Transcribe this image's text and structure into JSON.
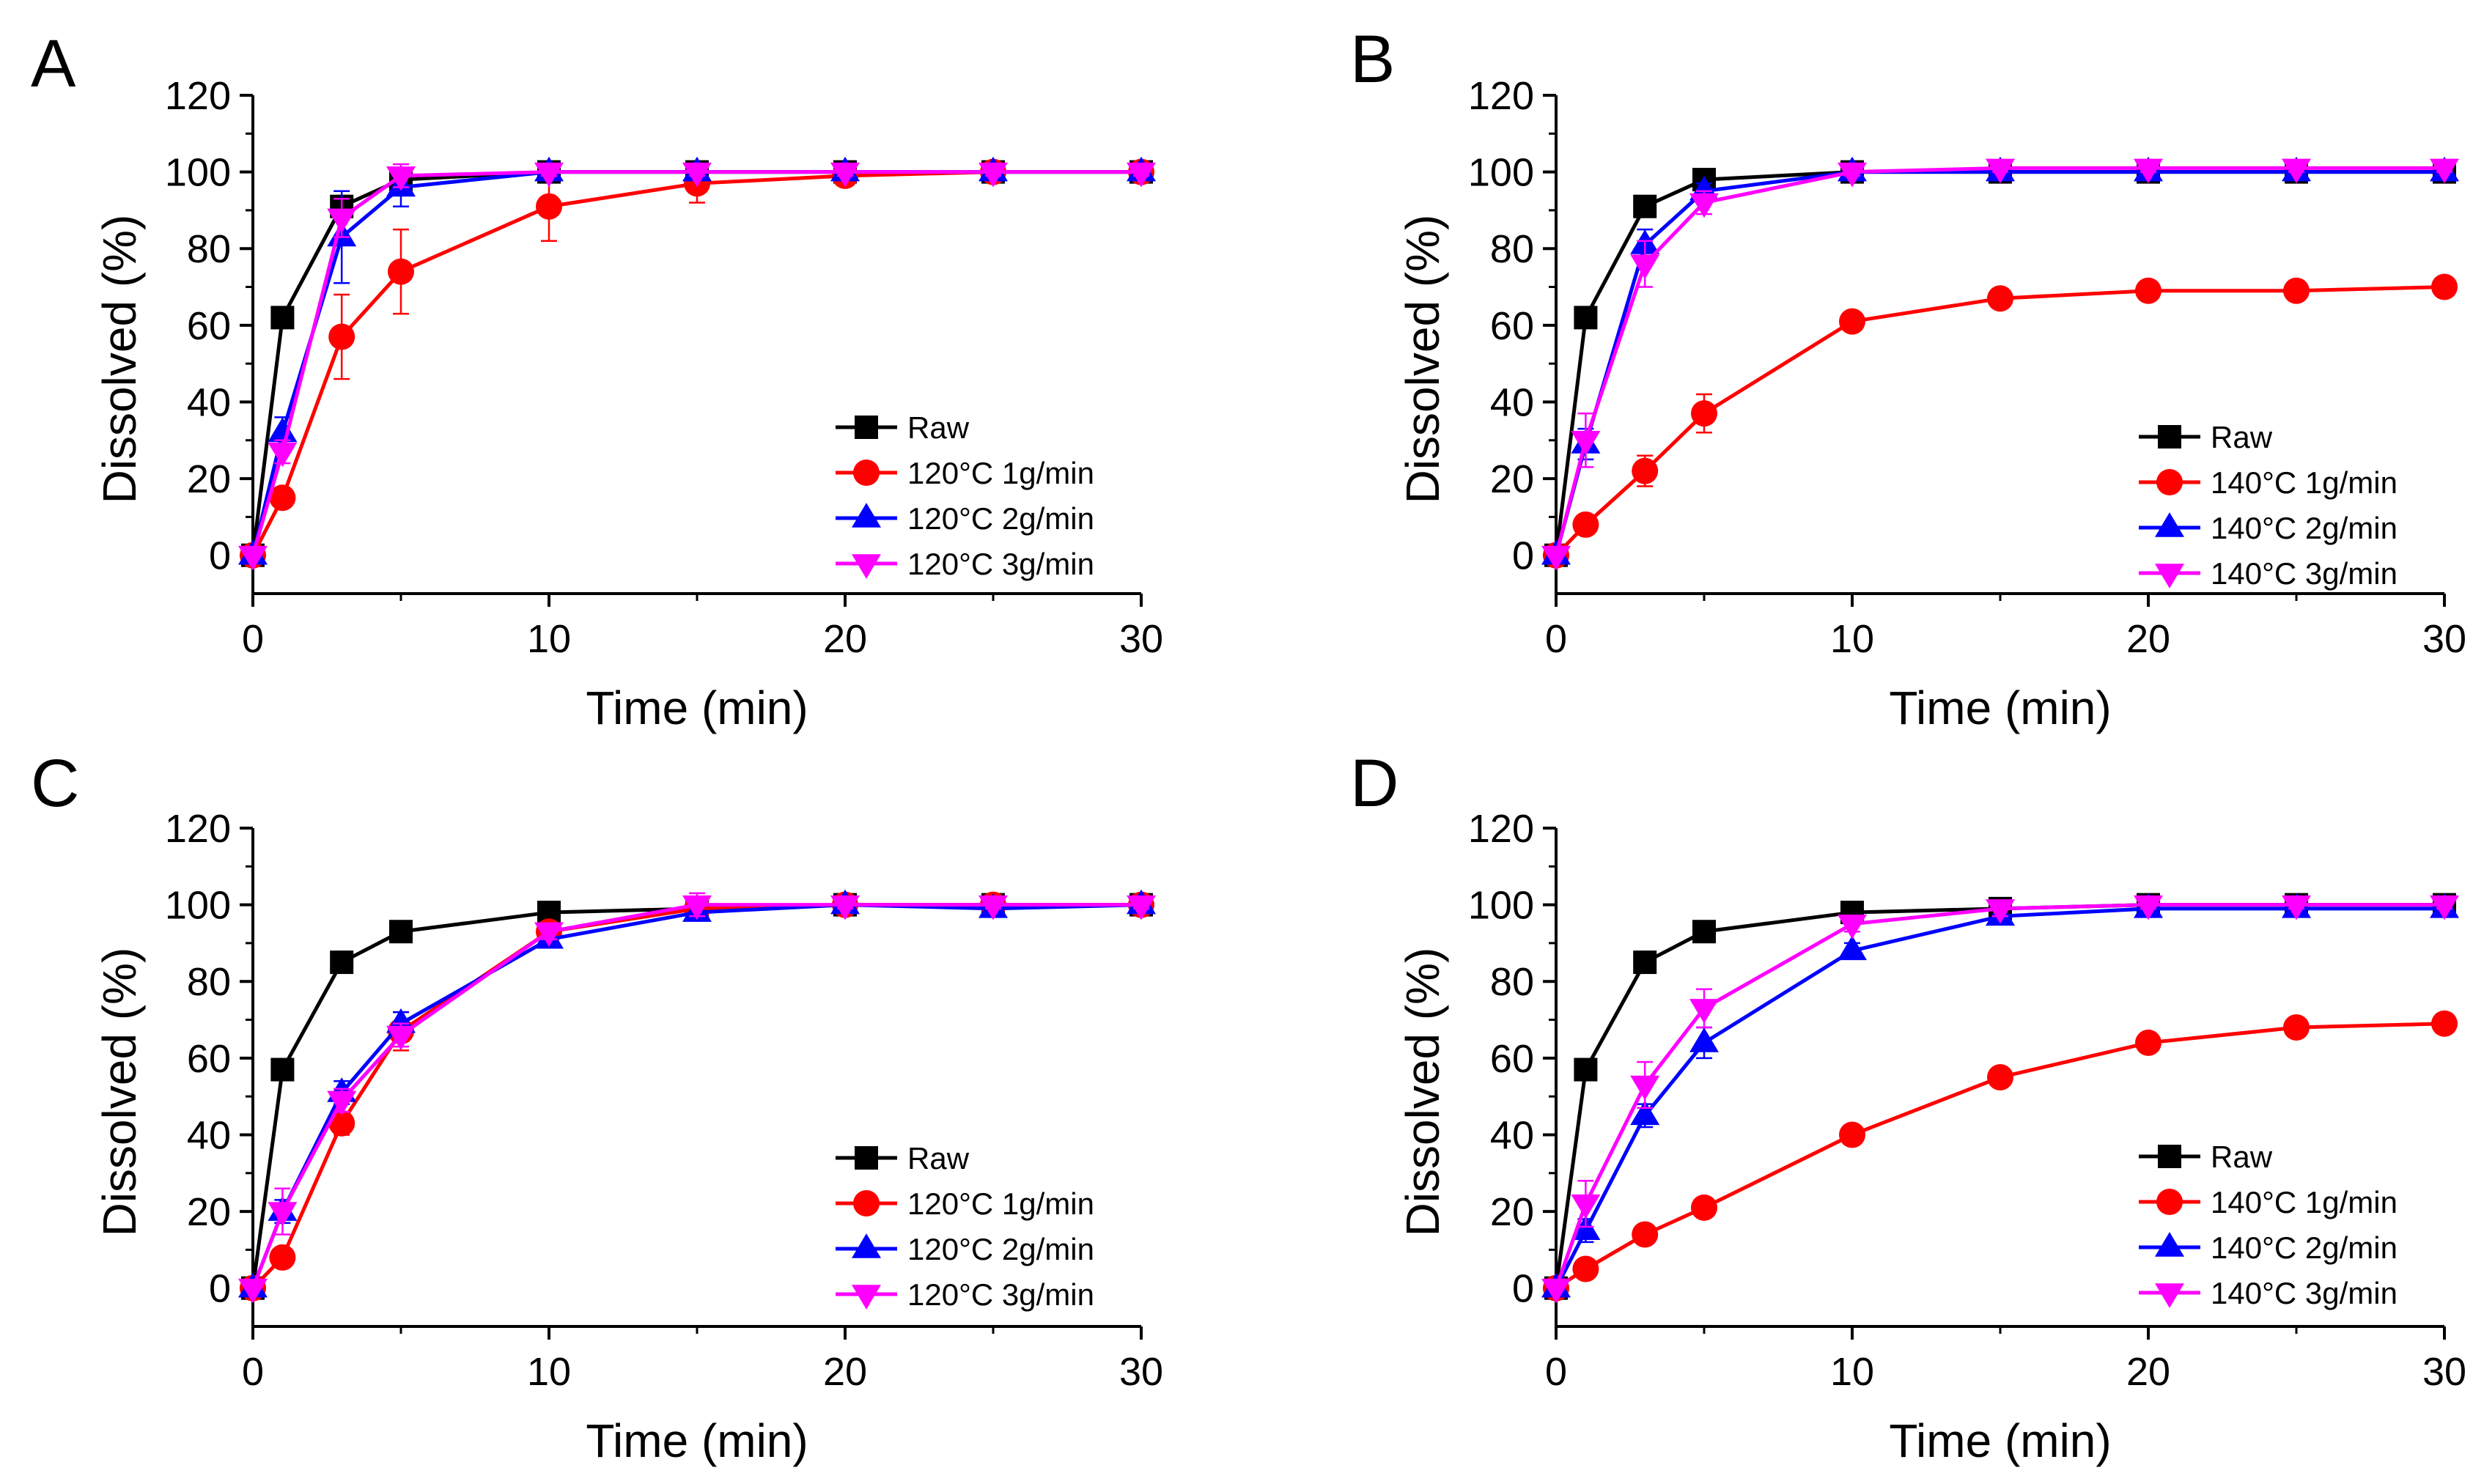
{
  "chart_data": [
    {
      "panel": "A",
      "type": "line",
      "xlabel": "Time (min)",
      "ylabel": "Dissolved (%)",
      "xlim": [
        0,
        30
      ],
      "ylim": [
        -10,
        120
      ],
      "xticks": [
        0,
        10,
        20,
        30
      ],
      "yticks": [
        0,
        20,
        40,
        60,
        80,
        100,
        120
      ],
      "legend_position": "bottom-right",
      "series": [
        {
          "name": "Raw",
          "color": "#000000",
          "marker": "square",
          "x": [
            0,
            1,
            3,
            5,
            10,
            15,
            20,
            25,
            30
          ],
          "y": [
            0,
            62,
            91,
            98,
            100,
            100,
            100,
            100,
            100
          ],
          "err": [
            0,
            0,
            0,
            0,
            0,
            0,
            0,
            0,
            0
          ]
        },
        {
          "name": "120°C 1g/min",
          "color": "#ff0000",
          "marker": "circle",
          "x": [
            0,
            1,
            3,
            5,
            10,
            15,
            20,
            25,
            30
          ],
          "y": [
            0,
            15,
            57,
            74,
            91,
            97,
            99,
            100,
            100
          ],
          "err": [
            0,
            2,
            11,
            11,
            9,
            5,
            1,
            0,
            0
          ]
        },
        {
          "name": "120°C 2g/min",
          "color": "#0000ff",
          "marker": "triangle-up",
          "x": [
            0,
            1,
            3,
            5,
            10,
            15,
            20,
            25,
            30
          ],
          "y": [
            0,
            32,
            83,
            96,
            100,
            100,
            100,
            100,
            100
          ],
          "err": [
            0,
            4,
            12,
            5,
            1,
            1,
            1,
            1,
            1
          ]
        },
        {
          "name": "120°C 3g/min",
          "color": "#ff00ff",
          "marker": "triangle-down",
          "x": [
            0,
            1,
            3,
            5,
            10,
            15,
            20,
            25,
            30
          ],
          "y": [
            0,
            27,
            88,
            99,
            100,
            100,
            100,
            100,
            100
          ],
          "err": [
            0,
            3,
            5,
            3,
            1,
            1,
            1,
            1,
            1
          ]
        }
      ]
    },
    {
      "panel": "B",
      "type": "line",
      "xlabel": "Time (min)",
      "ylabel": "Dissolved (%)",
      "xlim": [
        0,
        30
      ],
      "ylim": [
        -10,
        120
      ],
      "xticks": [
        0,
        10,
        20,
        30
      ],
      "yticks": [
        0,
        20,
        40,
        60,
        80,
        100,
        120
      ],
      "legend_position": "bottom-right",
      "series": [
        {
          "name": "Raw",
          "color": "#000000",
          "marker": "square",
          "x": [
            0,
            1,
            3,
            5,
            10,
            15,
            20,
            25,
            30
          ],
          "y": [
            0,
            62,
            91,
            98,
            100,
            100,
            100,
            100,
            100
          ],
          "err": [
            0,
            0,
            0,
            0,
            0,
            0,
            0,
            0,
            0
          ]
        },
        {
          "name": "140°C 1g/min",
          "color": "#ff0000",
          "marker": "circle",
          "x": [
            0,
            1,
            3,
            5,
            10,
            15,
            20,
            25,
            30
          ],
          "y": [
            0,
            8,
            22,
            37,
            61,
            67,
            69,
            69,
            70
          ],
          "err": [
            0,
            1,
            4,
            5,
            1,
            1,
            1,
            1,
            1
          ]
        },
        {
          "name": "140°C 2g/min",
          "color": "#0000ff",
          "marker": "triangle-up",
          "x": [
            0,
            1,
            3,
            5,
            10,
            15,
            20,
            25,
            30
          ],
          "y": [
            0,
            29,
            81,
            95,
            100,
            100,
            100,
            100,
            100
          ],
          "err": [
            0,
            4,
            4,
            2,
            1,
            1,
            1,
            1,
            1
          ]
        },
        {
          "name": "140°C 3g/min",
          "color": "#ff00ff",
          "marker": "triangle-down",
          "x": [
            0,
            1,
            3,
            5,
            10,
            15,
            20,
            25,
            30
          ],
          "y": [
            0,
            30,
            76,
            92,
            100,
            101,
            101,
            101,
            101
          ],
          "err": [
            0,
            7,
            6,
            3,
            1,
            1,
            1,
            1,
            1
          ]
        }
      ]
    },
    {
      "panel": "C",
      "type": "line",
      "xlabel": "Time (min)",
      "ylabel": "Dissolved (%)",
      "xlim": [
        0,
        30
      ],
      "ylim": [
        -10,
        120
      ],
      "xticks": [
        0,
        10,
        20,
        30
      ],
      "yticks": [
        0,
        20,
        40,
        60,
        80,
        100,
        120
      ],
      "legend_position": "bottom-right",
      "series": [
        {
          "name": "Raw",
          "color": "#000000",
          "marker": "square",
          "x": [
            0,
            1,
            3,
            5,
            10,
            15,
            20,
            25,
            30
          ],
          "y": [
            0,
            57,
            85,
            93,
            98,
            99,
            100,
            100,
            100
          ],
          "err": [
            0,
            0,
            0,
            0,
            0,
            0,
            0,
            0,
            0
          ]
        },
        {
          "name": "120°C 1g/min",
          "color": "#ff0000",
          "marker": "circle",
          "x": [
            0,
            1,
            3,
            5,
            10,
            15,
            20,
            25,
            30
          ],
          "y": [
            0,
            8,
            43,
            67,
            93,
            99,
            100,
            100,
            100
          ],
          "err": [
            0,
            2,
            3,
            5,
            2,
            2,
            1,
            1,
            1
          ]
        },
        {
          "name": "120°C 2g/min",
          "color": "#0000ff",
          "marker": "triangle-up",
          "x": [
            0,
            1,
            3,
            5,
            10,
            15,
            20,
            25,
            30
          ],
          "y": [
            0,
            20,
            51,
            69,
            91,
            98,
            100,
            99,
            100
          ],
          "err": [
            0,
            3,
            3,
            3,
            2,
            2,
            1,
            1,
            1
          ]
        },
        {
          "name": "120°C 3g/min",
          "color": "#ff00ff",
          "marker": "triangle-down",
          "x": [
            0,
            1,
            3,
            5,
            10,
            15,
            20,
            25,
            30
          ],
          "y": [
            0,
            20,
            49,
            66,
            93,
            100,
            100,
            100,
            100
          ],
          "err": [
            0,
            6,
            3,
            3,
            2,
            3,
            1,
            1,
            1
          ]
        }
      ]
    },
    {
      "panel": "D",
      "type": "line",
      "xlabel": "Time (min)",
      "ylabel": "Dissolved (%)",
      "xlim": [
        0,
        30
      ],
      "ylim": [
        -10,
        120
      ],
      "xticks": [
        0,
        10,
        20,
        30
      ],
      "yticks": [
        0,
        20,
        40,
        60,
        80,
        100,
        120
      ],
      "legend_position": "bottom-right",
      "series": [
        {
          "name": "Raw",
          "color": "#000000",
          "marker": "square",
          "x": [
            0,
            1,
            3,
            5,
            10,
            15,
            20,
            25,
            30
          ],
          "y": [
            0,
            57,
            85,
            93,
            98,
            99,
            100,
            100,
            100
          ],
          "err": [
            0,
            0,
            0,
            0,
            0,
            0,
            0,
            0,
            0
          ]
        },
        {
          "name": "140°C 1g/min",
          "color": "#ff0000",
          "marker": "circle",
          "x": [
            0,
            1,
            3,
            5,
            10,
            15,
            20,
            25,
            30
          ],
          "y": [
            0,
            5,
            14,
            21,
            40,
            55,
            64,
            68,
            69
          ],
          "err": [
            0,
            0,
            0,
            0,
            0,
            0,
            0,
            0,
            0
          ]
        },
        {
          "name": "140°C 2g/min",
          "color": "#0000ff",
          "marker": "triangle-up",
          "x": [
            0,
            1,
            3,
            5,
            10,
            15,
            20,
            25,
            30
          ],
          "y": [
            0,
            15,
            45,
            64,
            88,
            97,
            99,
            99,
            99
          ],
          "err": [
            0,
            3,
            3,
            4,
            2,
            2,
            1,
            1,
            1
          ]
        },
        {
          "name": "140°C 3g/min",
          "color": "#ff00ff",
          "marker": "triangle-down",
          "x": [
            0,
            1,
            3,
            5,
            10,
            15,
            20,
            25,
            30
          ],
          "y": [
            0,
            22,
            53,
            73,
            95,
            99,
            100,
            100,
            100
          ],
          "err": [
            0,
            6,
            6,
            5,
            2,
            2,
            1,
            1,
            1
          ]
        }
      ]
    }
  ]
}
